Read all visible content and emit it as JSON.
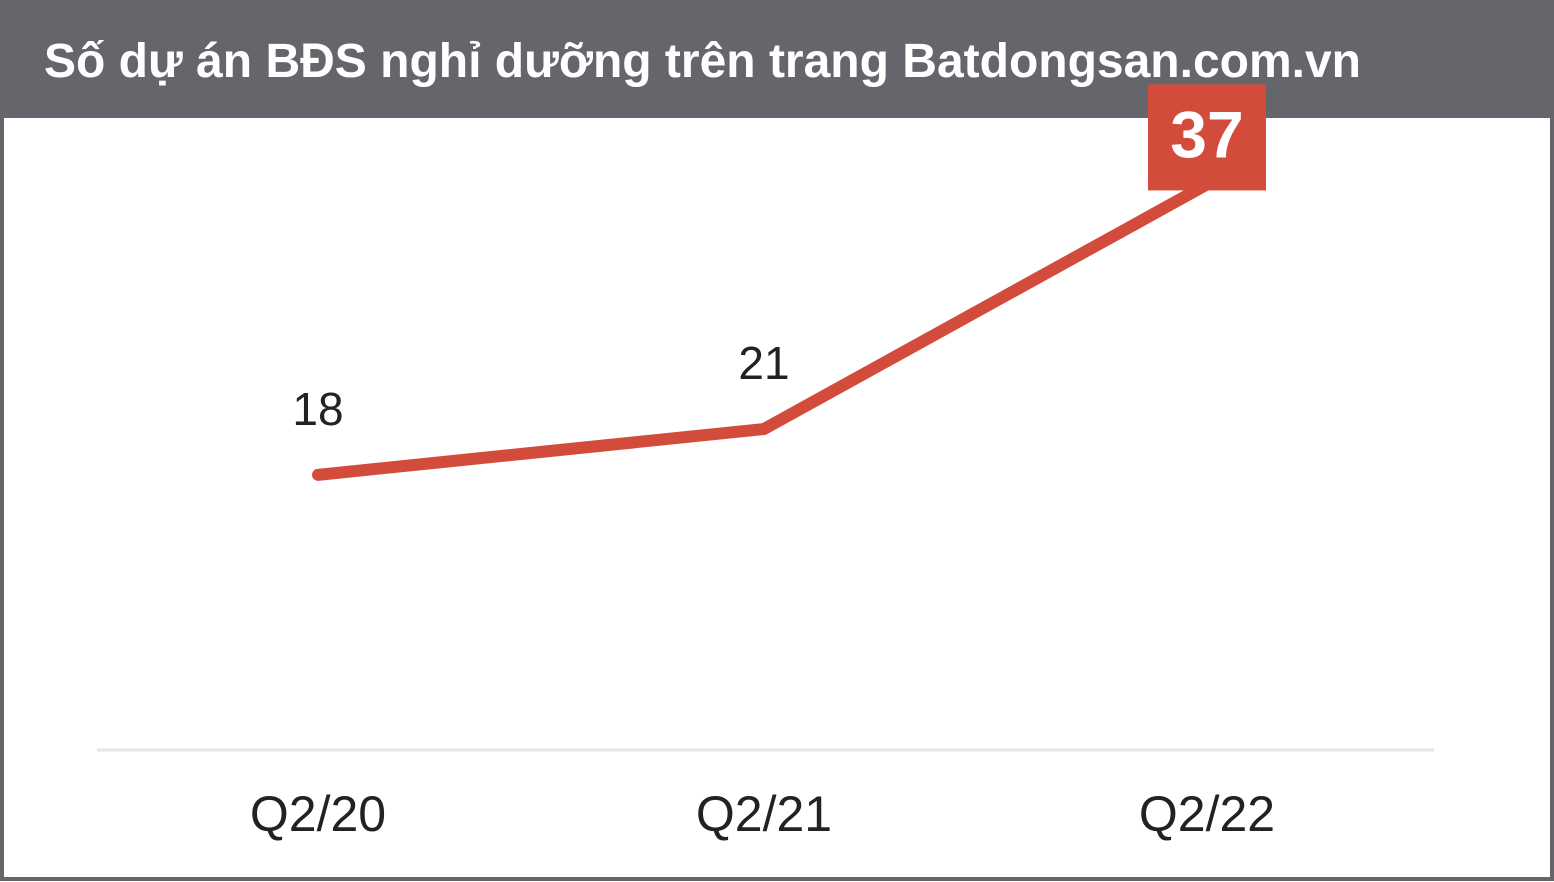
{
  "colors": {
    "header_bg": "#65666b",
    "line": "#d34b3b",
    "axis": "#e5e5e5",
    "text": "#222222"
  },
  "chart_data": {
    "type": "line",
    "title": "Số dự án BĐS nghỉ dưỡng trên trang Batdongsan.com.vn",
    "categories": [
      "Q2/20",
      "Q2/21",
      "Q2/22"
    ],
    "values": [
      18,
      21,
      37
    ],
    "data_labels": [
      "18",
      "21",
      "37"
    ],
    "highlight_index": 2,
    "ylim": [
      0,
      42
    ],
    "grid": false,
    "legend": "none"
  }
}
